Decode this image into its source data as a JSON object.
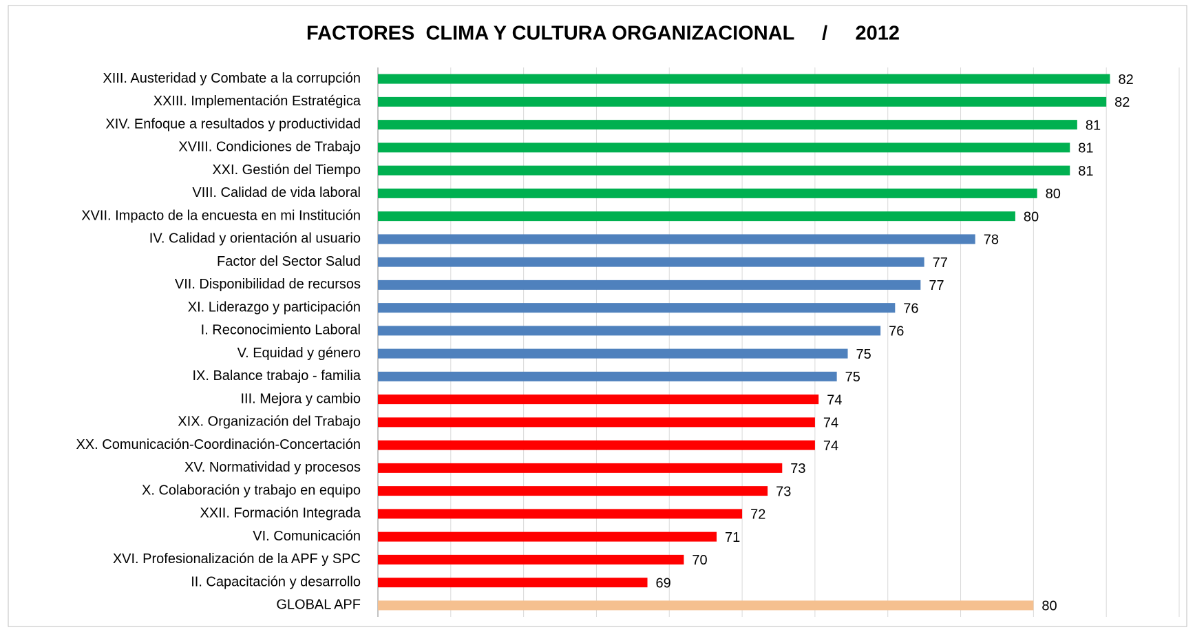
{
  "chart_data": {
    "type": "hbar",
    "title": "FACTORES  CLIMA Y CULTURA ORGANIZACIONAL     /     2012",
    "categories": [
      "XIII. Austeridad y Combate a la corrupción",
      "XXIII. Implementación Estratégica",
      "XIV. Enfoque a resultados y productividad",
      "XVIII. Condiciones de Trabajo",
      "XXI. Gestión del Tiempo",
      "VIII. Calidad de vida laboral",
      "XVII. Impacto de la encuesta en mi Institución",
      "IV. Calidad y orientación al usuario",
      "Factor del Sector Salud",
      "VII. Disponibilidad de recursos",
      "XI. Liderazgo y participación",
      "I. Reconocimiento Laboral",
      "V. Equidad y género",
      "IX. Balance trabajo - familia",
      "III. Mejora y cambio",
      "XIX. Organización del Trabajo",
      "XX. Comunicación-Coordinación-Concertación",
      "XV. Normatividad y procesos",
      "X. Colaboración y trabajo en equipo",
      "XXII. Formación Integrada",
      "VI. Comunicación",
      "XVI. Profesionalización de la APF y SPC",
      "II. Capacitación y desarrollo",
      "GLOBAL APF"
    ],
    "values": [
      82.1,
      82.0,
      81.2,
      81.0,
      81.0,
      80.1,
      79.5,
      78.4,
      77.0,
      76.9,
      76.2,
      75.8,
      74.9,
      74.6,
      74.1,
      74.0,
      74.0,
      73.1,
      72.7,
      72.0,
      71.3,
      70.4,
      69.4,
      80.0
    ],
    "value_labels": [
      "82",
      "82",
      "81",
      "81",
      "81",
      "80",
      "80",
      "78",
      "77",
      "77",
      "76",
      "76",
      "75",
      "75",
      "74",
      "74",
      "74",
      "73",
      "73",
      "72",
      "71",
      "70",
      "69",
      "80"
    ],
    "colors": [
      "#00b050",
      "#00b050",
      "#00b050",
      "#00b050",
      "#00b050",
      "#00b050",
      "#00b050",
      "#4f81bd",
      "#4f81bd",
      "#4f81bd",
      "#4f81bd",
      "#4f81bd",
      "#4f81bd",
      "#4f81bd",
      "#ff0000",
      "#ff0000",
      "#ff0000",
      "#ff0000",
      "#ff0000",
      "#ff0000",
      "#ff0000",
      "#ff0000",
      "#ff0000",
      "#f5c08f"
    ],
    "xlim": [
      62,
      84
    ],
    "xticks": [
      62,
      64,
      66,
      68,
      70,
      72,
      74,
      76,
      78,
      80,
      82,
      84
    ],
    "grid": true
  }
}
